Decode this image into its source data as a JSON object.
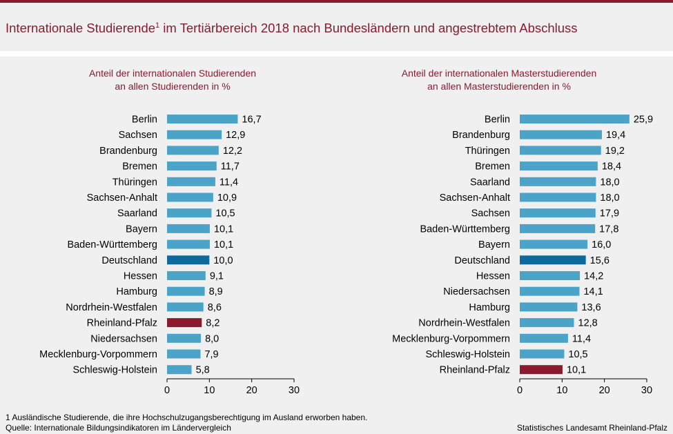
{
  "header": {
    "title_main": "Internationale Studierende",
    "title_sup": "1",
    "title_rest": " im Tertiärbereich 2018 nach Bundesländern und angestrebtem Abschluss"
  },
  "colors": {
    "bar_default": "#4ba3c7",
    "bar_germany": "#0e6a9a",
    "bar_highlight": "#8b1a2f",
    "title_color": "#8b1a2f"
  },
  "chart_data": [
    {
      "type": "bar",
      "orientation": "horizontal",
      "subtitle_line1": "Anteil der internationalen  Studierenden",
      "subtitle_line2": "an allen Studierenden  in %",
      "categories": [
        "Berlin",
        "Sachsen",
        "Brandenburg",
        "Bremen",
        "Thüringen",
        "Sachsen-Anhalt",
        "Saarland",
        "Bayern",
        "Baden-Württemberg",
        "Deutschland",
        "Hessen",
        "Hamburg",
        "Nordrhein-Westfalen",
        "Rheinland-Pfalz",
        "Niedersachsen",
        "Mecklenburg-Vorpommern",
        "Schleswig-Holstein"
      ],
      "values": [
        16.7,
        12.9,
        12.2,
        11.7,
        11.4,
        10.9,
        10.5,
        10.1,
        10.1,
        10.0,
        9.1,
        8.9,
        8.6,
        8.2,
        8.0,
        7.9,
        5.8
      ],
      "value_labels": [
        "16,7",
        "12,9",
        "12,2",
        "11,7",
        "11,4",
        "10,9",
        "10,5",
        "10,1",
        "10,1",
        "10,0",
        "9,1",
        "8,9",
        "8,6",
        "8,2",
        "8,0",
        "7,9",
        "5,8"
      ],
      "xlim": [
        0,
        30
      ],
      "ticks": [
        "0",
        "10",
        "20",
        "30"
      ],
      "highlight": {
        "Deutschland": "germany",
        "Rheinland-Pfalz": "highlight"
      }
    },
    {
      "type": "bar",
      "orientation": "horizontal",
      "subtitle_line1": "Anteil der internationalen  Masterstudierenden",
      "subtitle_line2": "an allen Masterstudierenden  in %",
      "categories": [
        "Berlin",
        "Brandenburg",
        "Thüringen",
        "Bremen",
        "Saarland",
        "Sachsen-Anhalt",
        "Sachsen",
        "Baden-Württemberg",
        "Bayern",
        "Deutschland",
        "Hessen",
        "Niedersachsen",
        "Hamburg",
        "Nordrhein-Westfalen",
        "Mecklenburg-Vorpommern",
        "Schleswig-Holstein",
        "Rheinland-Pfalz"
      ],
      "values": [
        25.9,
        19.4,
        19.2,
        18.4,
        18.0,
        18.0,
        17.9,
        17.8,
        16.0,
        15.6,
        14.2,
        14.1,
        13.6,
        12.8,
        11.4,
        10.5,
        10.1
      ],
      "value_labels": [
        "25,9",
        "19,4",
        "19,2",
        "18,4",
        "18,0",
        "18,0",
        "17,9",
        "17,8",
        "16,0",
        "15,6",
        "14,2",
        "14,1",
        "13,6",
        "12,8",
        "11,4",
        "10,5",
        "10,1"
      ],
      "xlim": [
        0,
        30
      ],
      "ticks": [
        "0",
        "10",
        "20",
        "30"
      ],
      "highlight": {
        "Deutschland": "germany",
        "Rheinland-Pfalz": "highlight"
      }
    }
  ],
  "footer": {
    "footnote": "1 Ausländische Studierende,  die ihre Hochschulzugangsberechtigung  im Ausland erworben  haben.",
    "source": "Quelle:  Internationale  Bildungsindikatoren  im Ländervergleich",
    "publisher": "Statistisches Landesamt Rheinland-Pfalz"
  }
}
